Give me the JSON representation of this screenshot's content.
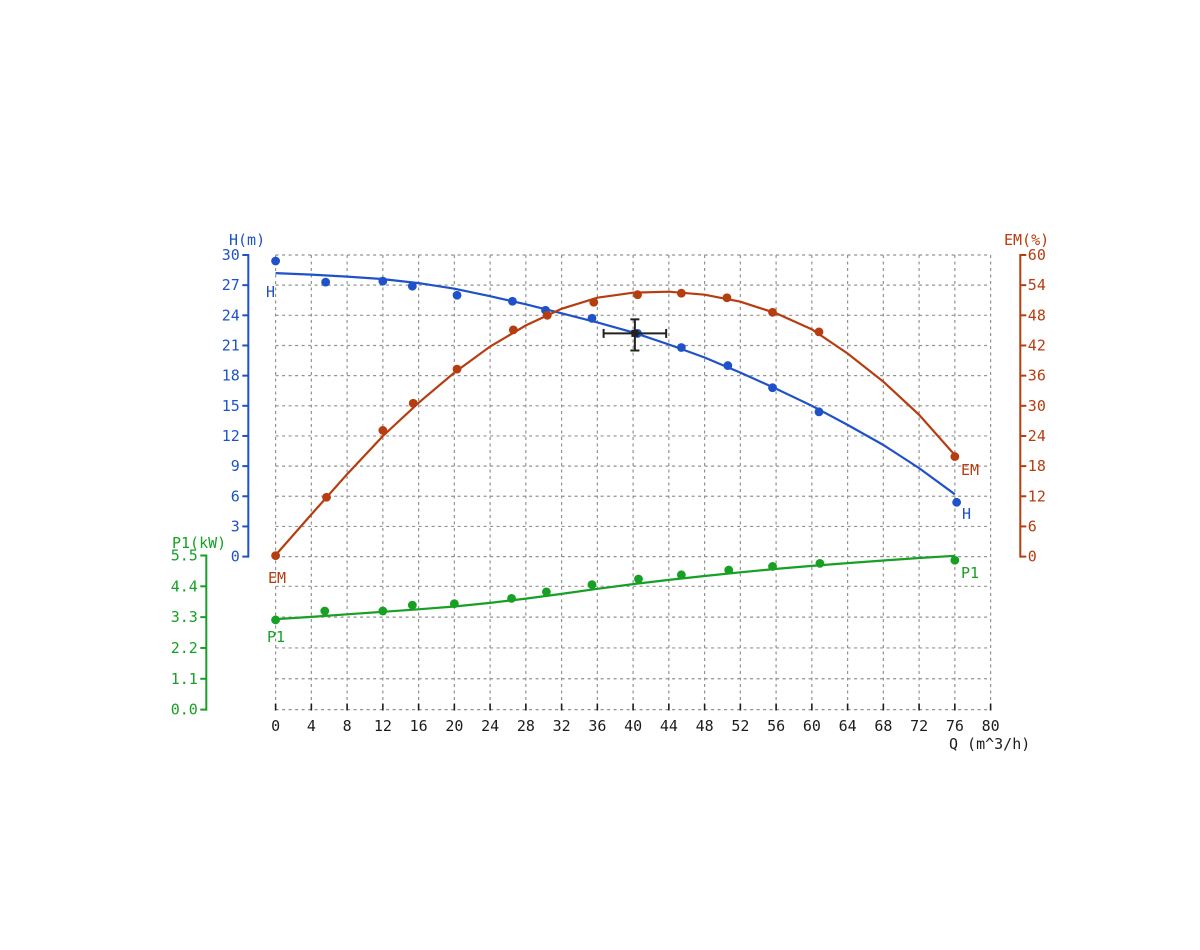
{
  "chart_data": {
    "type": "line",
    "title": "",
    "background": "#ffffff",
    "grid": {
      "on": true,
      "color": "#929292",
      "dash": "3 3.5"
    },
    "x_axis": {
      "label": "Q (m^3/h)",
      "min": 0,
      "max": 80,
      "tick_step": 4,
      "ticks": [
        0,
        4,
        8,
        12,
        16,
        20,
        24,
        28,
        32,
        36,
        40,
        44,
        48,
        52,
        56,
        60,
        64,
        68,
        72,
        76,
        80
      ],
      "color": "#1c1c1c"
    },
    "y_axes": [
      {
        "id": "H",
        "label": "H(m)",
        "min": 0,
        "max": 30,
        "tick_step": 3,
        "ticks": [
          "30",
          "27",
          "24",
          "21",
          "18",
          "15",
          "12",
          "9",
          "6",
          "3",
          "0"
        ],
        "color": "#1f52c8",
        "side": "left"
      },
      {
        "id": "EM",
        "label": "EM(%)",
        "min": 0,
        "max": 60,
        "tick_step": 6,
        "ticks": [
          "60",
          "54",
          "48",
          "42",
          "36",
          "30",
          "24",
          "18",
          "12",
          "6",
          "0"
        ],
        "color": "#b63d10",
        "side": "right"
      },
      {
        "id": "P1",
        "label": "P1(kW)",
        "min": 0,
        "max": 5.5,
        "tick_step": 1.1,
        "ticks": [
          "5.5",
          "4.4",
          "3.3",
          "2.2",
          "1.1",
          "0.0"
        ],
        "color": "#16a024",
        "side": "left-lower"
      }
    ],
    "series": [
      {
        "name": "H",
        "axis": "H",
        "color": "#1f52c8",
        "label_start": "H",
        "label_end": "H",
        "points": [
          [
            0,
            29.4
          ],
          [
            5.6,
            27.3
          ],
          [
            12,
            27.4
          ],
          [
            15.3,
            26.9
          ],
          [
            20.3,
            26.0
          ],
          [
            26.5,
            25.4
          ],
          [
            30.2,
            24.5
          ],
          [
            35.4,
            23.7
          ],
          [
            40.5,
            22.2
          ],
          [
            45.4,
            20.8
          ],
          [
            50.6,
            19.0
          ],
          [
            55.6,
            16.8
          ],
          [
            60.8,
            14.4
          ],
          [
            76.2,
            5.4
          ]
        ],
        "fit": [
          [
            0,
            28.2
          ],
          [
            4,
            28.05
          ],
          [
            8,
            27.85
          ],
          [
            12,
            27.6
          ],
          [
            16,
            27.2
          ],
          [
            20,
            26.65
          ],
          [
            24,
            25.9
          ],
          [
            28,
            25.1
          ],
          [
            32,
            24.2
          ],
          [
            36,
            23.3
          ],
          [
            40,
            22.3
          ],
          [
            44,
            21.1
          ],
          [
            48,
            19.8
          ],
          [
            52,
            18.3
          ],
          [
            56,
            16.7
          ],
          [
            60,
            15.0
          ],
          [
            64,
            13.1
          ],
          [
            68,
            11.1
          ],
          [
            72,
            8.8
          ],
          [
            76,
            6.2
          ]
        ]
      },
      {
        "name": "EM",
        "axis": "EM",
        "color": "#b63d10",
        "label_start": "EM",
        "label_end": "EM",
        "points": [
          [
            0,
            0.2
          ],
          [
            5.7,
            11.8
          ],
          [
            12,
            25.1
          ],
          [
            15.4,
            30.5
          ],
          [
            20.3,
            37.3
          ],
          [
            26.6,
            45.1
          ],
          [
            30.4,
            48.0
          ],
          [
            35.6,
            50.6
          ],
          [
            40.5,
            52.1
          ],
          [
            45.4,
            52.4
          ],
          [
            50.5,
            51.5
          ],
          [
            55.6,
            48.6
          ],
          [
            60.8,
            44.7
          ],
          [
            76,
            19.9
          ]
        ],
        "fit": [
          [
            0,
            0.3
          ],
          [
            4,
            8.4
          ],
          [
            8,
            16.4
          ],
          [
            12,
            24.0
          ],
          [
            16,
            30.6
          ],
          [
            20,
            36.6
          ],
          [
            24,
            41.8
          ],
          [
            28,
            46.0
          ],
          [
            32,
            49.3
          ],
          [
            36,
            51.5
          ],
          [
            40,
            52.5
          ],
          [
            44,
            52.7
          ],
          [
            48,
            52.1
          ],
          [
            52,
            50.7
          ],
          [
            56,
            48.4
          ],
          [
            60,
            45.2
          ],
          [
            64,
            40.4
          ],
          [
            68,
            34.8
          ],
          [
            72,
            28.2
          ],
          [
            76,
            20.2
          ]
        ]
      },
      {
        "name": "P1",
        "axis": "P1",
        "color": "#16a024",
        "label_start": "P1",
        "label_end": "P1",
        "points": [
          [
            0,
            3.2
          ],
          [
            5.5,
            3.52
          ],
          [
            12,
            3.52
          ],
          [
            15.3,
            3.73
          ],
          [
            20,
            3.78
          ],
          [
            26.4,
            3.97
          ],
          [
            30.3,
            4.2
          ],
          [
            35.4,
            4.46
          ],
          [
            40.6,
            4.66
          ],
          [
            45.4,
            4.81
          ],
          [
            50.7,
            4.98
          ],
          [
            55.6,
            5.11
          ],
          [
            60.9,
            5.22
          ],
          [
            76,
            5.33
          ]
        ],
        "fit": [
          [
            0,
            3.23
          ],
          [
            4,
            3.31
          ],
          [
            8,
            3.4
          ],
          [
            12,
            3.49
          ],
          [
            16,
            3.58
          ],
          [
            20,
            3.68
          ],
          [
            24,
            3.81
          ],
          [
            28,
            3.96
          ],
          [
            32,
            4.13
          ],
          [
            36,
            4.31
          ],
          [
            40,
            4.48
          ],
          [
            44,
            4.63
          ],
          [
            48,
            4.77
          ],
          [
            52,
            4.9
          ],
          [
            56,
            5.02
          ],
          [
            60,
            5.13
          ],
          [
            64,
            5.23
          ],
          [
            68,
            5.32
          ],
          [
            72,
            5.41
          ],
          [
            76,
            5.49
          ]
        ]
      }
    ],
    "duty_point": {
      "q": 40.2,
      "h": 22.2,
      "q_range": [
        36.7,
        43.7
      ],
      "h_range": [
        20.5,
        23.6
      ],
      "color": "#222222"
    }
  }
}
